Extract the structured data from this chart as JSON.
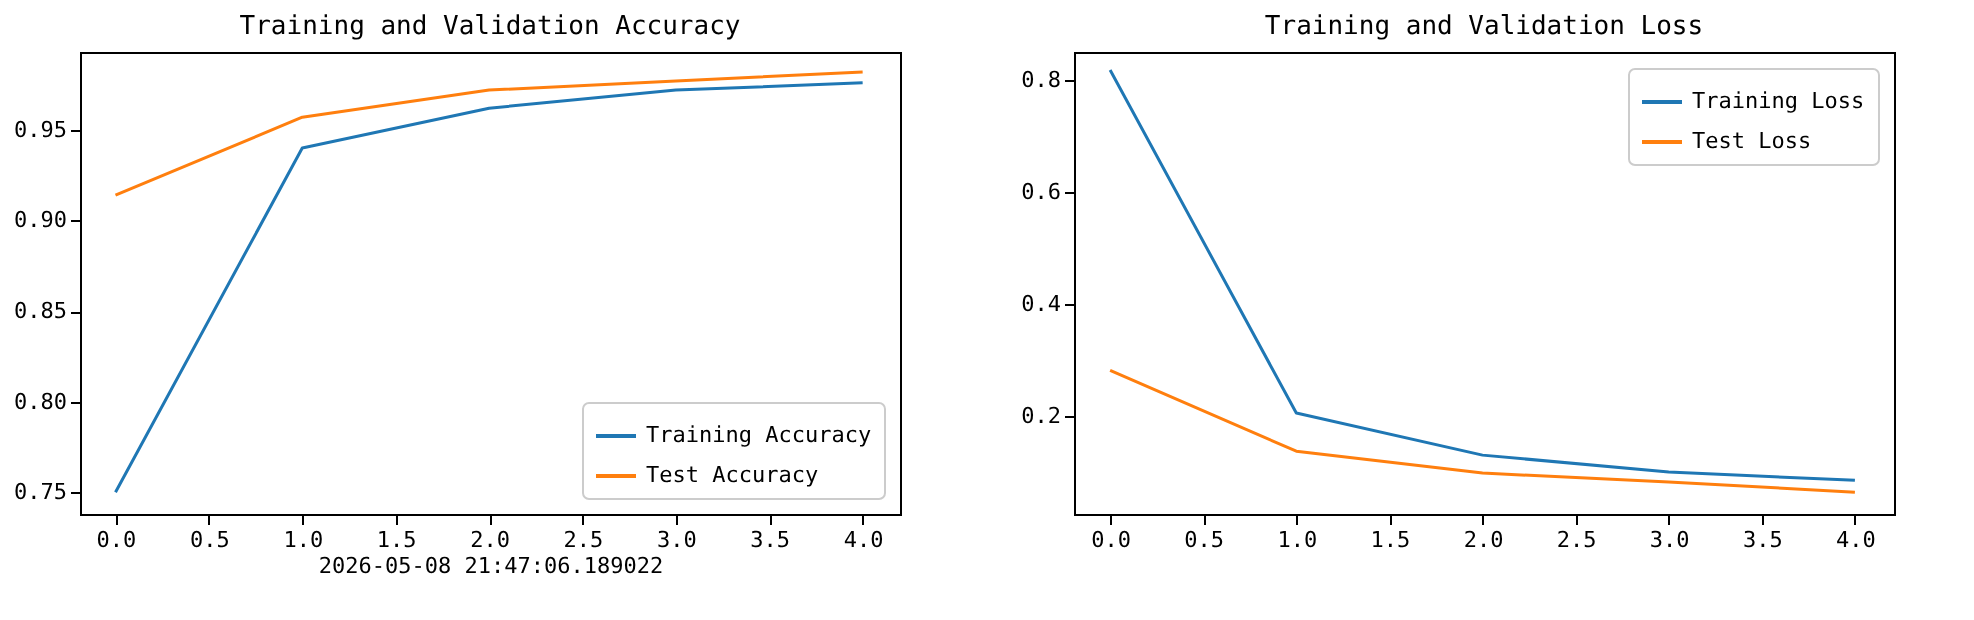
{
  "chart_data": [
    {
      "type": "line",
      "title": "Training and Validation Accuracy",
      "xlabel": "2026-05-08 21:47:06.189022",
      "x": [
        0,
        1,
        2,
        3,
        4
      ],
      "series": [
        {
          "name": "Training Accuracy",
          "color": "#1f77b4",
          "values": [
            0.75,
            0.94,
            0.962,
            0.972,
            0.976
          ]
        },
        {
          "name": "Test Accuracy",
          "color": "#ff7f0e",
          "values": [
            0.914,
            0.957,
            0.972,
            0.977,
            0.982
          ]
        }
      ],
      "xlim": [
        -0.19,
        4.2
      ],
      "ylim": [
        0.738,
        0.993
      ],
      "xticks": [
        {
          "value": 0,
          "label": "0.0"
        },
        {
          "value": 0.5,
          "label": "0.5"
        },
        {
          "value": 1,
          "label": "1.0"
        },
        {
          "value": 1.5,
          "label": "1.5"
        },
        {
          "value": 2,
          "label": "2.0"
        },
        {
          "value": 2.5,
          "label": "2.5"
        },
        {
          "value": 3,
          "label": "3.0"
        },
        {
          "value": 3.5,
          "label": "3.5"
        },
        {
          "value": 4,
          "label": "4.0"
        }
      ],
      "yticks": [
        0.75,
        {
          "value": 0.8,
          "label": "0.80"
        },
        0.85,
        {
          "value": 0.9,
          "label": "0.90"
        },
        0.95
      ],
      "grid": false,
      "legend": "bottom right"
    },
    {
      "type": "line",
      "title": "Training and Validation Loss",
      "x": [
        0,
        1,
        2,
        3,
        4
      ],
      "series": [
        {
          "name": "Training Loss",
          "color": "#1f77b4",
          "values": [
            0.818,
            0.206,
            0.131,
            0.101,
            0.086
          ]
        },
        {
          "name": "Test Loss",
          "color": "#ff7f0e",
          "values": [
            0.282,
            0.138,
            0.099,
            0.083,
            0.065
          ]
        }
      ],
      "xlim": [
        -0.194,
        4.21
      ],
      "ylim": [
        0.026,
        0.85
      ],
      "xticks": [
        {
          "value": 0,
          "label": "0.0"
        },
        {
          "value": 0.5,
          "label": "0.5"
        },
        {
          "value": 1,
          "label": "1.0"
        },
        {
          "value": 1.5,
          "label": "1.5"
        },
        {
          "value": 2,
          "label": "2.0"
        },
        {
          "value": 2.5,
          "label": "2.5"
        },
        {
          "value": 3,
          "label": "3.0"
        },
        {
          "value": 3.5,
          "label": "3.5"
        },
        {
          "value": 4,
          "label": "4.0"
        }
      ],
      "yticks": [
        0.2,
        0.4,
        0.6,
        0.8
      ],
      "grid": false,
      "legend": "top right"
    }
  ]
}
